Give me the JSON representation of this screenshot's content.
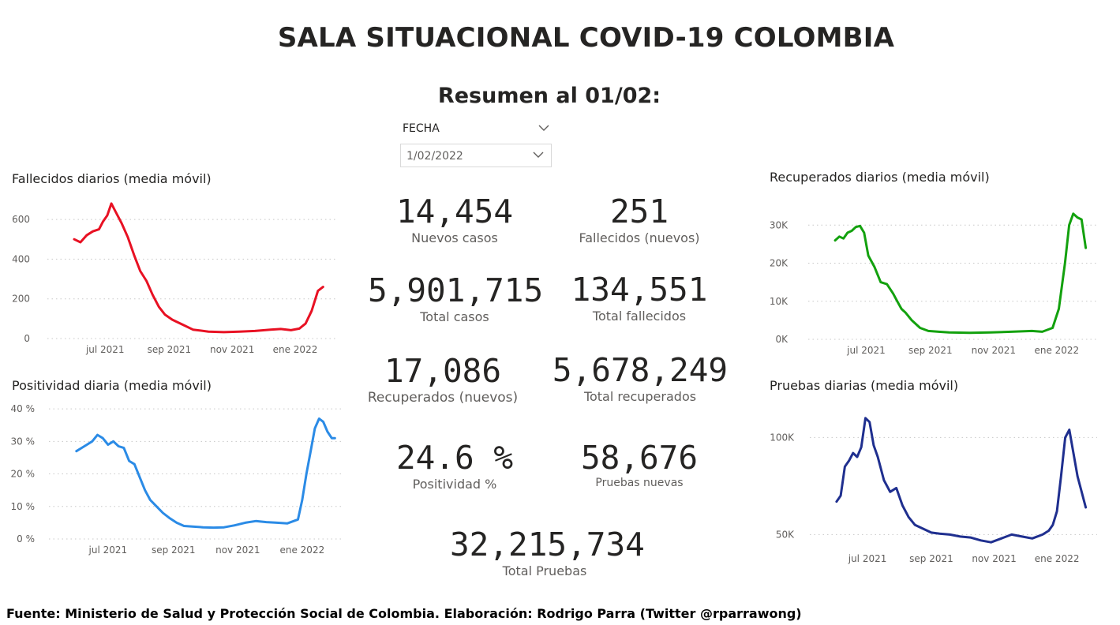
{
  "header": {
    "title": "SALA SITUACIONAL COVID-19 COLOMBIA",
    "subtitle": "Resumen al 01/02:"
  },
  "filter": {
    "label": "FECHA",
    "value": "1/02/2022",
    "chevron_icon": "chevron-down-icon"
  },
  "kpis": {
    "nuevos_casos": {
      "value": "14,454",
      "label": "Nuevos casos"
    },
    "fallecidos_nuevos": {
      "value": "251",
      "label": "Fallecidos (nuevos)"
    },
    "total_casos": {
      "value": "5,901,715",
      "label": "Total casos"
    },
    "total_fallecidos": {
      "value": "134,551",
      "label": "Total fallecidos"
    },
    "recuperados_nuevos": {
      "value": "17,086",
      "label": "Recuperados (nuevos)"
    },
    "total_recuperados": {
      "value": "5,678,249",
      "label": "Total recuperados"
    },
    "positividad": {
      "value": "24.6 %",
      "label": "Positividad %"
    },
    "pruebas_nuevas": {
      "value": "58,676",
      "label": "Pruebas nuevas"
    },
    "total_pruebas": {
      "value": "32,215,734",
      "label": "Total Pruebas"
    }
  },
  "footer": "Fuente: Ministerio de Salud y Protección Social de Colombia. Elaboración: Rodrigo Parra (Twitter @rparrawong)",
  "chart_data": [
    {
      "id": "fallecidos",
      "type": "line",
      "title": "Fallecidos diarios (media móvil)",
      "color": "#e81123",
      "x_ticks": [
        {
          "label": "jul 2021",
          "value": 30
        },
        {
          "label": "sep 2021",
          "value": 92
        },
        {
          "label": "nov 2021",
          "value": 153
        },
        {
          "label": "ene 2022",
          "value": 214
        }
      ],
      "y_ticks": [
        {
          "label": "0",
          "value": 0
        },
        {
          "label": "200",
          "value": 200
        },
        {
          "label": "400",
          "value": 400
        },
        {
          "label": "600",
          "value": 600
        }
      ],
      "xlim": [
        -26,
        253
      ],
      "ylim": [
        0,
        640
      ],
      "x": [
        0,
        6,
        12,
        18,
        24,
        28,
        32,
        36,
        40,
        46,
        52,
        58,
        64,
        70,
        76,
        82,
        88,
        95,
        105,
        115,
        130,
        145,
        160,
        175,
        190,
        200,
        210,
        218,
        224,
        230,
        236,
        241
      ],
      "values": [
        500,
        485,
        520,
        540,
        550,
        590,
        620,
        680,
        640,
        580,
        510,
        420,
        340,
        290,
        220,
        160,
        120,
        95,
        70,
        45,
        35,
        32,
        35,
        38,
        45,
        48,
        42,
        50,
        75,
        140,
        240,
        260
      ]
    },
    {
      "id": "recuperados",
      "type": "line",
      "title": "Recuperados diarios (media móvil)",
      "color": "#13a10e",
      "x_ticks": [
        {
          "label": "jul 2021",
          "value": 30
        },
        {
          "label": "sep 2021",
          "value": 92
        },
        {
          "label": "nov 2021",
          "value": 153
        },
        {
          "label": "ene 2022",
          "value": 214
        }
      ],
      "y_ticks": [
        {
          "label": "0K",
          "value": 0
        },
        {
          "label": "10K",
          "value": 10000
        },
        {
          "label": "20K",
          "value": 20000
        },
        {
          "label": "30K",
          "value": 30000
        }
      ],
      "xlim": [
        -26,
        253
      ],
      "ylim": [
        0,
        34000
      ],
      "x": [
        0,
        4,
        8,
        12,
        16,
        20,
        24,
        28,
        32,
        38,
        44,
        50,
        56,
        60,
        64,
        68,
        74,
        82,
        90,
        100,
        110,
        130,
        150,
        170,
        190,
        200,
        210,
        216,
        222,
        226,
        230,
        234,
        238,
        242
      ],
      "values": [
        26000,
        27000,
        26500,
        28000,
        28500,
        29500,
        29800,
        28000,
        22000,
        19000,
        15000,
        14500,
        12000,
        10000,
        8000,
        7000,
        5000,
        3000,
        2200,
        2000,
        1800,
        1700,
        1800,
        2000,
        2200,
        2000,
        3000,
        8000,
        20000,
        30000,
        33000,
        32000,
        31500,
        24000
      ]
    },
    {
      "id": "positividad",
      "type": "line",
      "title": "Positividad diaria (media móvil)",
      "color": "#2b8be6",
      "x_ticks": [
        {
          "label": "jul 2021",
          "value": 30
        },
        {
          "label": "sep 2021",
          "value": 92
        },
        {
          "label": "nov 2021",
          "value": 153
        },
        {
          "label": "ene 2022",
          "value": 214
        }
      ],
      "y_ticks": [
        {
          "label": "0 %",
          "value": 0
        },
        {
          "label": "10 %",
          "value": 10
        },
        {
          "label": "20 %",
          "value": 20
        },
        {
          "label": "30 %",
          "value": 30
        },
        {
          "label": "40 %",
          "value": 40
        }
      ],
      "xlim": [
        -26,
        253
      ],
      "ylim": [
        0,
        41
      ],
      "x": [
        0,
        5,
        10,
        15,
        20,
        25,
        30,
        35,
        40,
        45,
        50,
        55,
        60,
        65,
        70,
        76,
        82,
        88,
        95,
        102,
        110,
        120,
        130,
        140,
        150,
        160,
        170,
        180,
        190,
        200,
        210,
        214,
        218,
        222,
        226,
        230,
        234,
        238,
        242,
        245
      ],
      "values": [
        27,
        28,
        29,
        30,
        32,
        31,
        29,
        30,
        28.5,
        28,
        24,
        23,
        19,
        15,
        12,
        10,
        8,
        6.5,
        5,
        4,
        3.8,
        3.6,
        3.5,
        3.6,
        4.2,
        5,
        5.5,
        5.2,
        5,
        4.8,
        6,
        12,
        20,
        27,
        34,
        37,
        36,
        33,
        31,
        31
      ]
    },
    {
      "id": "pruebas",
      "type": "line",
      "title": "Pruebas diarias (media móvil)",
      "color": "#1f2f8f",
      "x_ticks": [
        {
          "label": "jul 2021",
          "value": 30
        },
        {
          "label": "sep 2021",
          "value": 92
        },
        {
          "label": "nov 2021",
          "value": 153
        },
        {
          "label": "ene 2022",
          "value": 214
        }
      ],
      "y_ticks": [
        {
          "label": "50K",
          "value": 50000
        },
        {
          "label": "100K",
          "value": 100000
        }
      ],
      "xlim": [
        -26,
        253
      ],
      "ylim": [
        40000,
        114000
      ],
      "x": [
        0,
        4,
        8,
        12,
        16,
        20,
        24,
        28,
        32,
        36,
        40,
        46,
        52,
        58,
        64,
        70,
        76,
        84,
        92,
        100,
        110,
        120,
        130,
        140,
        150,
        160,
        170,
        180,
        190,
        200,
        206,
        210,
        214,
        218,
        222,
        226,
        230,
        234,
        238,
        242
      ],
      "values": [
        67000,
        70000,
        85000,
        88000,
        92000,
        90000,
        95000,
        110000,
        108000,
        96000,
        90000,
        78000,
        72000,
        74000,
        65000,
        59000,
        55000,
        53000,
        51000,
        50500,
        50000,
        49000,
        48500,
        47000,
        46000,
        48000,
        50000,
        49000,
        48000,
        50000,
        52000,
        55000,
        62000,
        80000,
        100000,
        104000,
        92000,
        80000,
        72000,
        64000
      ]
    }
  ]
}
